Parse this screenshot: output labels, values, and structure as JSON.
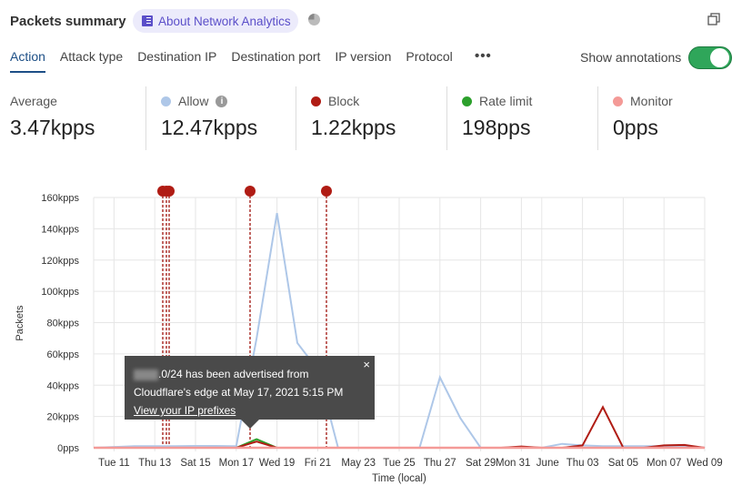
{
  "header": {
    "title": "Packets summary",
    "about_label": "About Network Analytics",
    "icons": [
      "book-icon",
      "pie-chart-icon",
      "expand-icon"
    ]
  },
  "tabs": [
    {
      "label": "Action",
      "active": true
    },
    {
      "label": "Attack type"
    },
    {
      "label": "Destination IP"
    },
    {
      "label": "Destination port"
    },
    {
      "label": "IP version"
    },
    {
      "label": "Protocol"
    }
  ],
  "more_label": "•••",
  "annotations_toggle": {
    "label": "Show annotations",
    "on": true
  },
  "stats": [
    {
      "label": "Average",
      "value": "3.47kpps"
    },
    {
      "label": "Allow",
      "value": "12.47kpps",
      "color": "#aec7e8",
      "info": true
    },
    {
      "label": "Block",
      "value": "1.22kpps",
      "color": "#b01c14"
    },
    {
      "label": "Rate limit",
      "value": "198pps",
      "color": "#2ca02c"
    },
    {
      "label": "Monitor",
      "value": "0pps",
      "color": "#f49a97"
    }
  ],
  "tooltip": {
    "text_line1": ".0/24 has been advertised from",
    "text_line2": "Cloudflare's edge at May 17, 2021 5:15 PM",
    "link": "View your IP prefixes",
    "close": "×"
  },
  "chart_data": {
    "type": "line",
    "xlabel": "Time (local)",
    "ylabel": "Packets",
    "ylim": [
      0,
      160000
    ],
    "yticks": [
      "0pps",
      "20kpps",
      "40kpps",
      "60kpps",
      "80kpps",
      "100kpps",
      "120kpps",
      "140kpps",
      "160kpps"
    ],
    "xticks": [
      "Tue 11",
      "Thu 13",
      "Sat 15",
      "Mon 17",
      "Wed 19",
      "Fri 21",
      "May 23",
      "Tue 25",
      "Thu 27",
      "Sat 29",
      "Mon 31",
      "June",
      "Thu 03",
      "Sat 05",
      "Mon 07",
      "Wed 09"
    ],
    "x": [
      "May 10",
      "May 11",
      "May 12",
      "May 13",
      "May 14",
      "May 15",
      "May 16",
      "May 17",
      "May 18",
      "May 19",
      "May 20",
      "May 21",
      "May 22",
      "May 23",
      "May 24",
      "May 25",
      "May 26",
      "May 27",
      "May 28",
      "May 29",
      "May 30",
      "May 31",
      "Jun 01",
      "Jun 02",
      "Jun 03",
      "Jun 04",
      "Jun 05",
      "Jun 06",
      "Jun 07",
      "Jun 08",
      "Jun 09"
    ],
    "series": [
      {
        "name": "Allow",
        "color": "#aec7e8",
        "values": [
          0,
          500,
          1000,
          1000,
          1000,
          1200,
          1200,
          1000,
          70000,
          150000,
          67000,
          50000,
          0,
          0,
          0,
          0,
          0,
          45000,
          19000,
          0,
          0,
          0,
          0,
          2500,
          1500,
          1000,
          1000,
          1000,
          1000,
          1000,
          0
        ]
      },
      {
        "name": "Rate limit",
        "color": "#2ca02c",
        "values": [
          0,
          0,
          0,
          0,
          0,
          0,
          0,
          0,
          5500,
          0,
          0,
          0,
          0,
          0,
          0,
          0,
          0,
          0,
          0,
          0,
          0,
          0,
          0,
          0,
          0,
          0,
          0,
          0,
          0,
          0,
          0
        ]
      },
      {
        "name": "Block",
        "color": "#b01c14",
        "values": [
          0,
          0,
          0,
          0,
          0,
          0,
          0,
          0,
          4000,
          0,
          0,
          0,
          0,
          0,
          0,
          0,
          0,
          0,
          0,
          0,
          0,
          800,
          0,
          0,
          1500,
          26000,
          0,
          0,
          1500,
          1800,
          0
        ]
      },
      {
        "name": "Monitor",
        "color": "#f49a97",
        "values": [
          0,
          0,
          0,
          0,
          0,
          0,
          0,
          0,
          0,
          0,
          0,
          0,
          0,
          0,
          0,
          0,
          0,
          0,
          0,
          0,
          0,
          0,
          0,
          0,
          0,
          0,
          0,
          0,
          0,
          0,
          0
        ]
      }
    ],
    "annotations": [
      "May 13",
      "May 13",
      "May 13",
      "May 17 5:15 PM",
      "May 21"
    ],
    "grid": true
  }
}
